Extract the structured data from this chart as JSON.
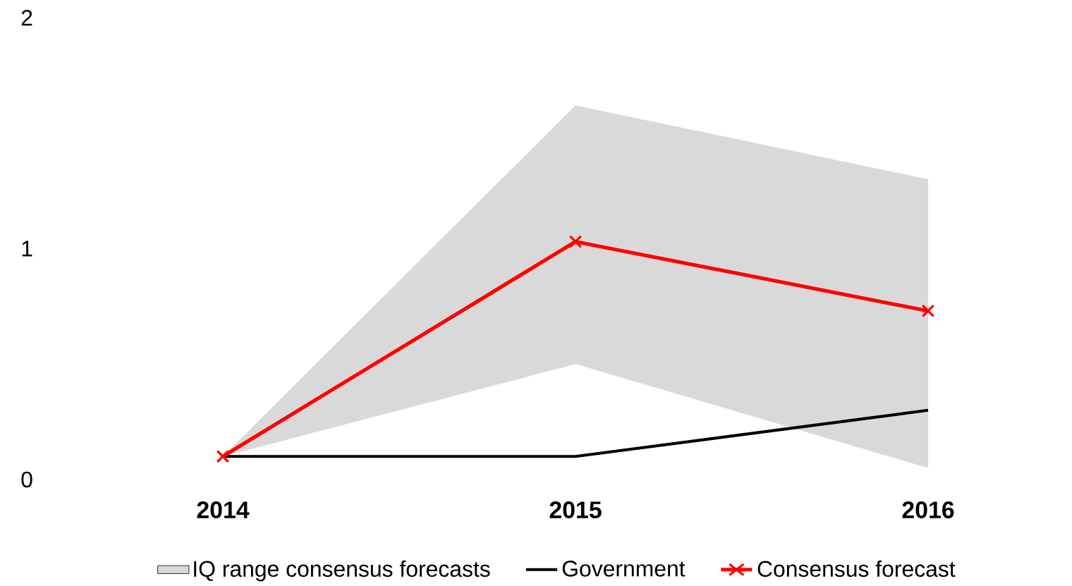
{
  "chart_data": {
    "type": "line",
    "categories": [
      "2014",
      "2015",
      "2016"
    ],
    "series": [
      {
        "name": "IQ range consensus forecasts",
        "type": "area",
        "color": "#d9d9d9",
        "values": [
          null,
          null,
          null
        ],
        "lower": [
          0.1,
          0.5,
          0.05
        ],
        "upper": [
          0.1,
          1.62,
          1.3
        ]
      },
      {
        "name": "Government",
        "color": "#000000",
        "values": [
          0.1,
          0.1,
          0.3
        ],
        "marker": "none"
      },
      {
        "name": "Consensus forecast",
        "color": "#ff0000",
        "values": [
          0.1,
          1.03,
          0.73
        ],
        "marker": "cross"
      }
    ],
    "ylim": [
      0,
      2
    ],
    "yticks": [
      0,
      1,
      2
    ],
    "legend": "bottom"
  }
}
